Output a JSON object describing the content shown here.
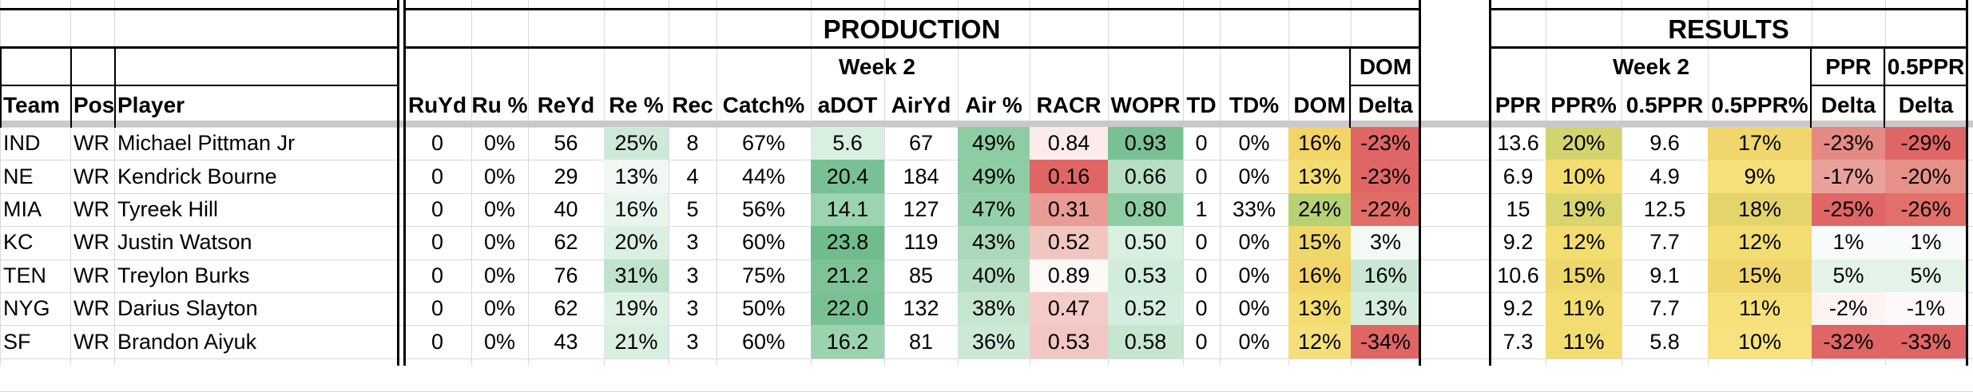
{
  "sections": {
    "production": "PRODUCTION",
    "results": "RESULTS"
  },
  "subheaders": {
    "week_production": "Week 2",
    "dom": "DOM",
    "week_results": "Week 2",
    "ppr": "PPR",
    "half_ppr": "0.5PPR"
  },
  "columns": {
    "left": [
      "Team",
      "Pos",
      "Player"
    ],
    "production": [
      "RuYd",
      "Ru %",
      "ReYd",
      "Re %",
      "Rec",
      "Catch%",
      "aDOT",
      "AirYd",
      "Air %",
      "RACR",
      "WOPR",
      "TD",
      "TD%",
      "DOM",
      "Delta"
    ],
    "results": [
      "PPR",
      "PPR%",
      "0.5PPR",
      "0.5PPR%",
      "Delta",
      "Delta"
    ]
  },
  "rows": [
    {
      "team": "IND",
      "pos": "WR",
      "player": "Michael Pittman Jr",
      "ruyd": "0",
      "rupct": "0%",
      "reyd": "56",
      "repct": "25%",
      "rec": "8",
      "catch": "67%",
      "adot": "5.6",
      "airyd": "67",
      "airpct": "49%",
      "racr": "0.84",
      "wopr": "0.93",
      "td": "0",
      "tdpct": "0%",
      "dom": "16%",
      "delta": "-23%",
      "ppr": "13.6",
      "pprpct": "20%",
      "half": "9.6",
      "halfpct": "17%",
      "pprdelta": "-23%",
      "halfdelta": "-29%"
    },
    {
      "team": "NE",
      "pos": "WR",
      "player": "Kendrick Bourne",
      "ruyd": "0",
      "rupct": "0%",
      "reyd": "29",
      "repct": "13%",
      "rec": "4",
      "catch": "44%",
      "adot": "20.4",
      "airyd": "184",
      "airpct": "49%",
      "racr": "0.16",
      "wopr": "0.66",
      "td": "0",
      "tdpct": "0%",
      "dom": "13%",
      "delta": "-23%",
      "ppr": "6.9",
      "pprpct": "10%",
      "half": "4.9",
      "halfpct": "9%",
      "pprdelta": "-17%",
      "halfdelta": "-20%"
    },
    {
      "team": "MIA",
      "pos": "WR",
      "player": "Tyreek Hill",
      "ruyd": "0",
      "rupct": "0%",
      "reyd": "40",
      "repct": "16%",
      "rec": "5",
      "catch": "56%",
      "adot": "14.1",
      "airyd": "127",
      "airpct": "47%",
      "racr": "0.31",
      "wopr": "0.80",
      "td": "1",
      "tdpct": "33%",
      "dom": "24%",
      "delta": "-22%",
      "ppr": "15",
      "pprpct": "19%",
      "half": "12.5",
      "halfpct": "18%",
      "pprdelta": "-25%",
      "halfdelta": "-26%"
    },
    {
      "team": "KC",
      "pos": "WR",
      "player": "Justin Watson",
      "ruyd": "0",
      "rupct": "0%",
      "reyd": "62",
      "repct": "20%",
      "rec": "3",
      "catch": "60%",
      "adot": "23.8",
      "airyd": "119",
      "airpct": "43%",
      "racr": "0.52",
      "wopr": "0.50",
      "td": "0",
      "tdpct": "0%",
      "dom": "15%",
      "delta": "3%",
      "ppr": "9.2",
      "pprpct": "12%",
      "half": "7.7",
      "halfpct": "12%",
      "pprdelta": "1%",
      "halfdelta": "1%"
    },
    {
      "team": "TEN",
      "pos": "WR",
      "player": "Treylon Burks",
      "ruyd": "0",
      "rupct": "0%",
      "reyd": "76",
      "repct": "31%",
      "rec": "3",
      "catch": "75%",
      "adot": "21.2",
      "airyd": "85",
      "airpct": "40%",
      "racr": "0.89",
      "wopr": "0.53",
      "td": "0",
      "tdpct": "0%",
      "dom": "16%",
      "delta": "16%",
      "ppr": "10.6",
      "pprpct": "15%",
      "half": "9.1",
      "halfpct": "15%",
      "pprdelta": "5%",
      "halfdelta": "5%"
    },
    {
      "team": "NYG",
      "pos": "WR",
      "player": "Darius Slayton",
      "ruyd": "0",
      "rupct": "0%",
      "reyd": "62",
      "repct": "19%",
      "rec": "3",
      "catch": "50%",
      "adot": "22.0",
      "airyd": "132",
      "airpct": "38%",
      "racr": "0.47",
      "wopr": "0.52",
      "td": "0",
      "tdpct": "0%",
      "dom": "13%",
      "delta": "13%",
      "ppr": "9.2",
      "pprpct": "11%",
      "half": "7.7",
      "halfpct": "11%",
      "pprdelta": "-2%",
      "halfdelta": "-1%"
    },
    {
      "team": "SF",
      "pos": "WR",
      "player": "Brandon Aiyuk",
      "ruyd": "0",
      "rupct": "0%",
      "reyd": "43",
      "repct": "21%",
      "rec": "3",
      "catch": "60%",
      "adot": "16.2",
      "airyd": "81",
      "airpct": "36%",
      "racr": "0.53",
      "wopr": "0.58",
      "td": "0",
      "tdpct": "0%",
      "dom": "12%",
      "delta": "-34%",
      "ppr": "7.3",
      "pprpct": "11%",
      "half": "5.8",
      "halfpct": "10%",
      "pprdelta": "-32%",
      "halfdelta": "-33%"
    }
  ],
  "colors": {
    "green_light": "#e6f4ea",
    "green_mid": "#b7dfc4",
    "green_dark": "#79c194",
    "red_light": "#f8e1df",
    "red_mid": "#eeb1aa",
    "red_dark": "#e06666",
    "yellow": "#e6d36b",
    "yellow_light": "#f3df78"
  },
  "fills": [
    {
      "repct": "#cfe9d8",
      "adot": "#d9efe0",
      "airpct": "#8ecda4",
      "racr": "#fbeceb",
      "wopr": "#79c194",
      "dom": "#f2d468",
      "delta": "#e06666",
      "pprpct": "#d4d46f",
      "halfpct": "#f0d66c",
      "pprdelta": "#e58a83",
      "halfdelta": "#e06666"
    },
    {
      "repct": "#f1f8f3",
      "adot": "#79c194",
      "airpct": "#8ecda4",
      "racr": "#e06666",
      "wopr": "#b7dfc4",
      "dom": "#f3dd70",
      "delta": "#e06666",
      "pprpct": "#f3dd70",
      "halfpct": "#f6e07a",
      "pprdelta": "#e9a29b",
      "halfdelta": "#e69088"
    },
    {
      "repct": "#e8f5ec",
      "adot": "#9dd4b0",
      "airpct": "#96d0aa",
      "racr": "#e99c95",
      "wopr": "#8ecda4",
      "dom": "#b7d274",
      "delta": "#e26d66",
      "pprpct": "#dad66f",
      "halfpct": "#e4d46c",
      "pprdelta": "#e06666",
      "halfdelta": "#e27068"
    },
    {
      "repct": "#dbefe2",
      "adot": "#6fbd8c",
      "airpct": "#a9d9ba",
      "racr": "#f1c6c1",
      "wopr": "#d9efe0",
      "dom": "#eed86c",
      "delta": "#f3f9f5",
      "pprpct": "#f3dd70",
      "halfpct": "#f3dd70",
      "pprdelta": "#f8fbf9",
      "halfdelta": "#f8fbf9"
    },
    {
      "repct": "#c0e3cb",
      "adot": "#7dc397",
      "airpct": "#b5ddc2",
      "racr": "#fef8f7",
      "wopr": "#d1ecda",
      "dom": "#f2d468",
      "delta": "#c9e7d3",
      "pprpct": "#eed86c",
      "halfpct": "#f0d66c",
      "pprdelta": "#e3f3e8",
      "halfdelta": "#e3f3e8"
    },
    {
      "repct": "#dff1e5",
      "adot": "#79c194",
      "airpct": "#c5e5cf",
      "racr": "#f3ccc8",
      "wopr": "#d4edde",
      "dom": "#f3dd70",
      "delta": "#d6eddd",
      "pprpct": "#f3dd70",
      "halfpct": "#f6e07a",
      "pprdelta": "#fdf3f2",
      "halfdelta": "#fef9f8"
    },
    {
      "repct": "#d9efe0",
      "adot": "#9bd3ae",
      "airpct": "#cde9d6",
      "racr": "#f2c7c3",
      "wopr": "#c6e6d0",
      "dom": "#f5df7a",
      "delta": "#e06666",
      "pprpct": "#f3dd70",
      "halfpct": "#f8e27e",
      "pprdelta": "#e06666",
      "halfdelta": "#e06666"
    }
  ]
}
